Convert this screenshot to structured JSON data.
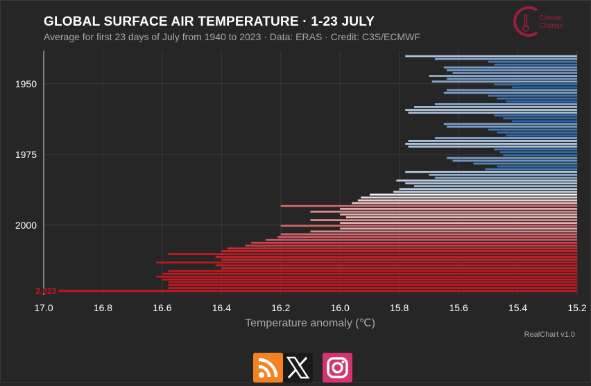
{
  "header": {
    "title": "GLOBAL SURFACE AIR TEMPERATURE · 1-23 JULY",
    "subtitle": "Average for first 23 days of July from 1940 to 2023 · Data: ERAS · Credit: C3S/ECMWF"
  },
  "logo": {
    "line1": "Climate",
    "line2": "Change",
    "color": "#9c1f3a"
  },
  "footer": {
    "credit": "RealChart v1.0"
  },
  "social": [
    {
      "name": "rss-icon",
      "color": "#f58220"
    },
    {
      "name": "x-icon",
      "color": "#1a1a1a"
    },
    {
      "name": "instagram-icon",
      "color": "#d6336c"
    }
  ],
  "chart_data": {
    "type": "bar",
    "orientation": "horizontal",
    "xlabel": "Temperature anomaly (℃)",
    "ylabel": "",
    "xlim": [
      17.0,
      15.2
    ],
    "x_reversed": true,
    "ylim": [
      1940,
      2023
    ],
    "x_ticks": [
      "17.0",
      "16.8",
      "16.6",
      "16.4",
      "16.2",
      "16.0",
      "15.8",
      "15.6",
      "15.4",
      "15.2"
    ],
    "y_ticks": [
      "1950",
      "1975",
      "2000"
    ],
    "grid": true,
    "baseline": 15.2,
    "colors": {
      "cold": "#1f5fa6",
      "neutral": "#f4f4f4",
      "warm": "#c0181f",
      "highlight": "#c0181f"
    },
    "highlight": {
      "year": 2023,
      "label": "2,023",
      "value": 16.95
    },
    "years": [
      1940,
      1941,
      1942,
      1943,
      1944,
      1945,
      1946,
      1947,
      1948,
      1949,
      1950,
      1951,
      1952,
      1953,
      1954,
      1955,
      1956,
      1957,
      1958,
      1959,
      1960,
      1961,
      1962,
      1963,
      1964,
      1965,
      1966,
      1967,
      1968,
      1969,
      1970,
      1971,
      1972,
      1973,
      1974,
      1975,
      1976,
      1977,
      1978,
      1979,
      1980,
      1981,
      1982,
      1983,
      1984,
      1985,
      1986,
      1987,
      1988,
      1989,
      1990,
      1991,
      1992,
      1993,
      1994,
      1995,
      1996,
      1997,
      1998,
      1999,
      2000,
      2001,
      2002,
      2003,
      2004,
      2005,
      2006,
      2007,
      2008,
      2009,
      2010,
      2011,
      2012,
      2013,
      2014,
      2015,
      2016,
      2017,
      2018,
      2019,
      2020,
      2021,
      2022,
      2023
    ],
    "values": [
      15.78,
      15.68,
      15.5,
      15.48,
      15.65,
      15.64,
      15.62,
      15.7,
      15.64,
      15.69,
      15.48,
      15.42,
      15.64,
      15.65,
      15.5,
      15.47,
      15.44,
      15.68,
      15.75,
      15.78,
      15.77,
      15.48,
      15.45,
      15.42,
      15.65,
      15.64,
      15.5,
      15.47,
      15.44,
      15.68,
      15.77,
      15.78,
      15.77,
      15.48,
      15.46,
      15.45,
      15.64,
      15.62,
      15.55,
      15.47,
      15.51,
      15.78,
      15.7,
      15.68,
      15.81,
      15.78,
      15.75,
      15.8,
      15.82,
      15.9,
      15.93,
      15.94,
      15.96,
      16.2,
      16.0,
      16.1,
      16.0,
      15.98,
      16.1,
      16.0,
      16.2,
      16.0,
      16.1,
      16.2,
      16.21,
      16.25,
      16.3,
      16.32,
      16.38,
      16.4,
      16.58,
      16.42,
      16.4,
      16.62,
      16.42,
      16.4,
      16.58,
      16.6,
      16.62,
      16.6,
      16.58,
      16.58,
      16.58,
      16.95
    ]
  }
}
